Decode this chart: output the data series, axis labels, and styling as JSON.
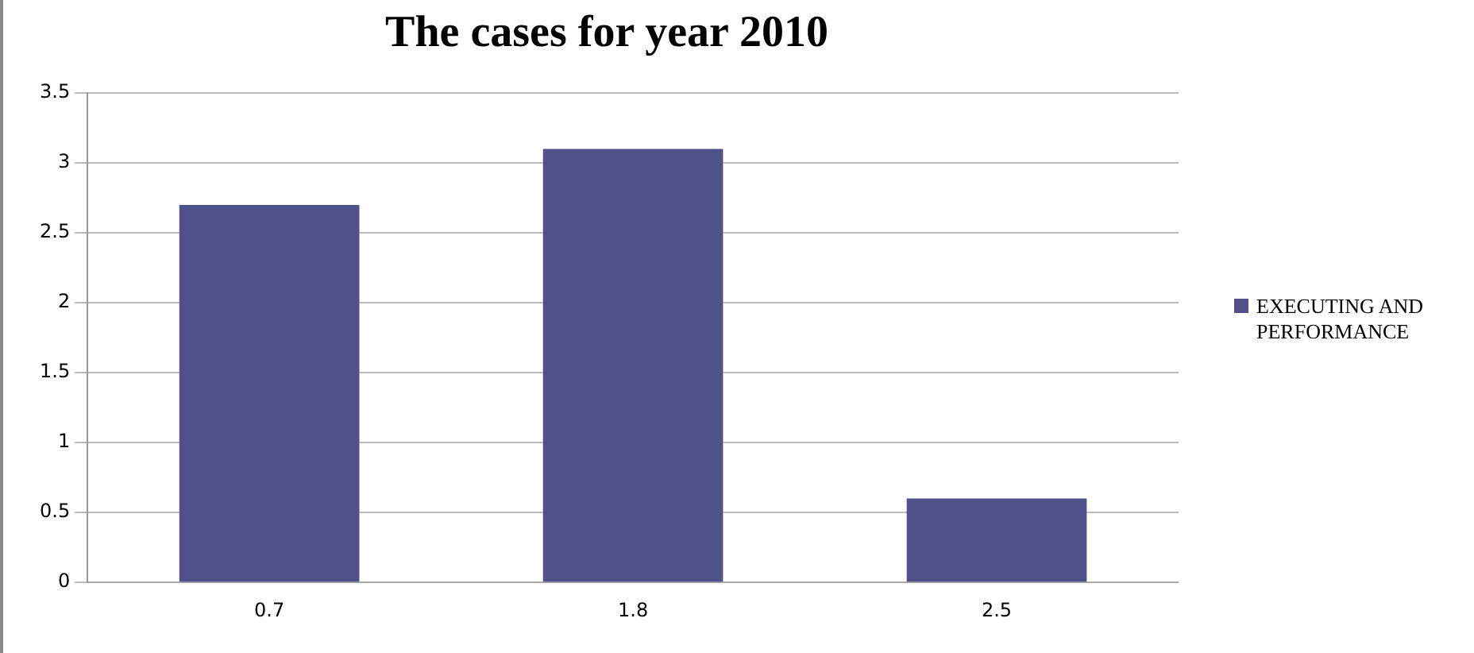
{
  "chart_data": {
    "type": "bar",
    "title": "The cases for year 2010",
    "categories": [
      "0.7",
      "1.8",
      "2.5"
    ],
    "series": [
      {
        "name": "EXECUTING AND PERFORMANCE",
        "color": "#4f5189",
        "values": [
          2.7,
          3.1,
          0.6
        ]
      }
    ],
    "ylim": [
      0,
      3.5
    ],
    "yticks": [
      0,
      0.5,
      1,
      1.5,
      2,
      2.5,
      3,
      3.5
    ],
    "grid": "y",
    "legend": "right"
  }
}
